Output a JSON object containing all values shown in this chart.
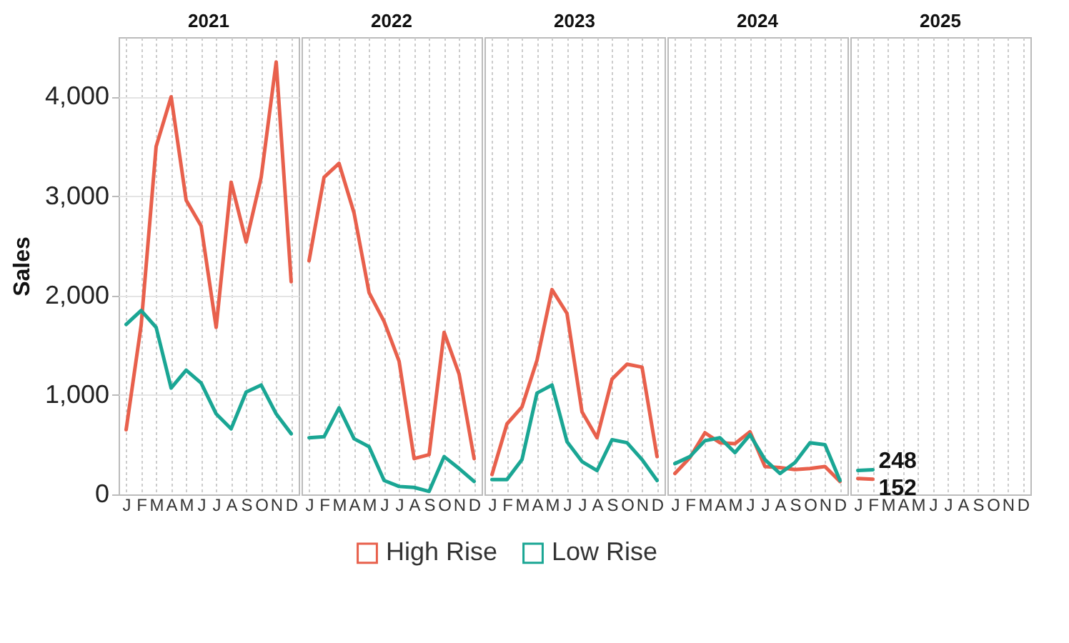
{
  "chart_data": [
    {
      "type": "line",
      "title": "2021",
      "ylabel": "Sales",
      "legend": "bottom",
      "categories": [
        "J",
        "F",
        "M",
        "A",
        "M",
        "J",
        "J",
        "A",
        "S",
        "O",
        "N",
        "D"
      ],
      "ylim": [
        0,
        4600
      ],
      "yticks": [
        {
          "value": 0,
          "label": "0"
        },
        {
          "value": 1000,
          "label": "1,000"
        },
        {
          "value": 2000,
          "label": "2,000"
        },
        {
          "value": 3000,
          "label": "3,000"
        },
        {
          "value": 4000,
          "label": "4,000"
        }
      ],
      "grid": true,
      "series": [
        {
          "name": "High Rise",
          "color": "#e8604c",
          "values": [
            650,
            1700,
            3500,
            4000,
            2960,
            2700,
            1680,
            3140,
            2540,
            3190,
            4350,
            2140
          ]
        },
        {
          "name": "Low Rise",
          "color": "#1aa694",
          "values": [
            1710,
            1850,
            1680,
            1070,
            1250,
            1120,
            810,
            660,
            1030,
            1100,
            810,
            610
          ]
        }
      ]
    },
    {
      "type": "line",
      "title": "2022",
      "categories": [
        "J",
        "F",
        "M",
        "A",
        "M",
        "J",
        "J",
        "A",
        "S",
        "O",
        "N",
        "D"
      ],
      "ylim": [
        0,
        4600
      ],
      "tick_labels": "x",
      "grid": true,
      "series": [
        {
          "name": "High Rise",
          "color": "#e8604c",
          "values": [
            2350,
            3190,
            3330,
            2830,
            2030,
            1740,
            1340,
            360,
            400,
            1630,
            1210,
            360
          ]
        },
        {
          "name": "Low Rise",
          "color": "#1aa694",
          "values": [
            570,
            580,
            870,
            560,
            480,
            140,
            80,
            70,
            30,
            380,
            260,
            130
          ]
        }
      ]
    },
    {
      "type": "line",
      "title": "2023",
      "categories": [
        "J",
        "F",
        "M",
        "A",
        "M",
        "J",
        "J",
        "A",
        "S",
        "O",
        "N",
        "D"
      ],
      "ylim": [
        0,
        4600
      ],
      "tick_labels": "x",
      "grid": true,
      "series": [
        {
          "name": "High Rise",
          "color": "#e8604c",
          "values": [
            200,
            710,
            880,
            1350,
            2060,
            1820,
            830,
            570,
            1160,
            1310,
            1280,
            380
          ]
        },
        {
          "name": "Low Rise",
          "color": "#1aa694",
          "values": [
            150,
            150,
            350,
            1020,
            1100,
            530,
            330,
            240,
            550,
            520,
            350,
            140
          ]
        }
      ]
    },
    {
      "type": "line",
      "title": "2024",
      "categories": [
        "J",
        "F",
        "M",
        "A",
        "M",
        "J",
        "J",
        "A",
        "S",
        "O",
        "N",
        "D"
      ],
      "ylim": [
        0,
        4600
      ],
      "tick_labels": "x",
      "grid": true,
      "series": [
        {
          "name": "High Rise",
          "color": "#e8604c",
          "values": [
            210,
            370,
            620,
            520,
            510,
            630,
            280,
            270,
            250,
            260,
            280,
            130
          ]
        },
        {
          "name": "Low Rise",
          "color": "#1aa694",
          "values": [
            310,
            380,
            540,
            570,
            420,
            600,
            350,
            210,
            320,
            520,
            500,
            140
          ]
        }
      ]
    },
    {
      "type": "line",
      "title": "2025",
      "categories": [
        "J",
        "F",
        "M",
        "A",
        "M",
        "J",
        "J",
        "A",
        "S",
        "O",
        "N",
        "D"
      ],
      "ylim": [
        0,
        4600
      ],
      "tick_labels": "x",
      "grid": true,
      "series": [
        {
          "name": "High Rise",
          "color": "#e8604c",
          "values": [
            160,
            152,
            null,
            null,
            null,
            null,
            null,
            null,
            null,
            null,
            null,
            null
          ],
          "value_labels": [
            null,
            "152",
            null,
            null,
            null,
            null,
            null,
            null,
            null,
            null,
            null,
            null
          ]
        },
        {
          "name": "Low Rise",
          "color": "#1aa694",
          "values": [
            240,
            248,
            null,
            null,
            null,
            null,
            null,
            null,
            null,
            null,
            null,
            null
          ],
          "value_labels": [
            null,
            "248",
            null,
            null,
            null,
            null,
            null,
            null,
            null,
            null,
            null,
            null
          ]
        }
      ]
    }
  ]
}
